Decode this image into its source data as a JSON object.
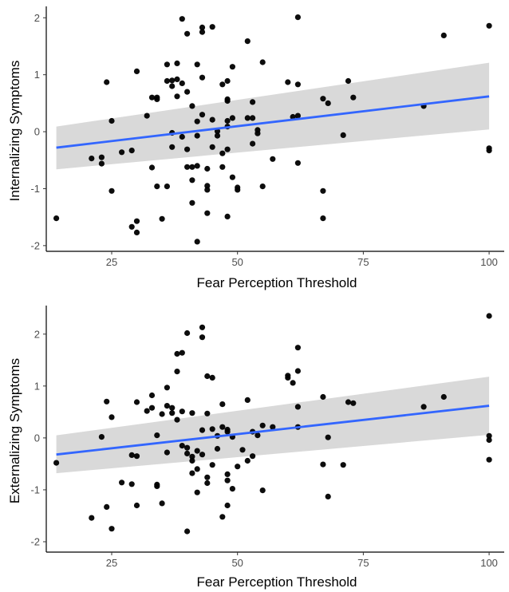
{
  "colors": {
    "points": "#000000",
    "fit_line": "#3366ff",
    "confidence_band": "#d9d9d9",
    "axis": "#000000"
  },
  "chart_data": [
    {
      "type": "scatter",
      "title": "",
      "xlabel": "Fear Perception Threshold",
      "ylabel": "Internalizing Symptoms",
      "xlim": [
        12,
        103
      ],
      "ylim": [
        -2.1,
        2.2
      ],
      "x_ticks": [
        25,
        50,
        75,
        100
      ],
      "y_ticks": [
        -2,
        -1,
        0,
        1,
        2
      ],
      "grid": false,
      "fit": {
        "method": "linear",
        "x": [
          14,
          100
        ],
        "y": [
          -0.28,
          0.62
        ],
        "ci_lower": [
          -0.66,
          0.04
        ],
        "ci_upper": [
          0.09,
          1.21
        ]
      },
      "points": [
        [
          14,
          -1.52
        ],
        [
          21,
          -0.47
        ],
        [
          23,
          -0.45
        ],
        [
          23,
          -0.56
        ],
        [
          24,
          0.87
        ],
        [
          25,
          0.19
        ],
        [
          25,
          -1.04
        ],
        [
          27,
          -0.36
        ],
        [
          29,
          -0.33
        ],
        [
          29,
          -1.67
        ],
        [
          30,
          -1.57
        ],
        [
          30,
          -1.77
        ],
        [
          30,
          1.06
        ],
        [
          32,
          0.28
        ],
        [
          33,
          -0.63
        ],
        [
          33,
          0.6
        ],
        [
          34,
          0.57
        ],
        [
          34,
          0.6
        ],
        [
          34,
          -0.96
        ],
        [
          35,
          -1.53
        ],
        [
          36,
          0.89
        ],
        [
          36,
          1.18
        ],
        [
          36,
          -0.96
        ],
        [
          37,
          0.8
        ],
        [
          37,
          -0.02
        ],
        [
          37,
          -0.27
        ],
        [
          37,
          0.9
        ],
        [
          38,
          1.2
        ],
        [
          38,
          0.62
        ],
        [
          38,
          0.92
        ],
        [
          39,
          0.85
        ],
        [
          39,
          -0.09
        ],
        [
          39,
          1.98
        ],
        [
          40,
          0.7
        ],
        [
          40,
          -0.31
        ],
        [
          40,
          -0.62
        ],
        [
          40,
          1.72
        ],
        [
          41,
          0.45
        ],
        [
          41,
          -0.62
        ],
        [
          41,
          -0.85
        ],
        [
          41,
          -1.25
        ],
        [
          42,
          1.18
        ],
        [
          42,
          0.18
        ],
        [
          42,
          -0.07
        ],
        [
          42,
          -0.6
        ],
        [
          42,
          -1.93
        ],
        [
          43,
          1.75
        ],
        [
          43,
          1.83
        ],
        [
          43,
          0.95
        ],
        [
          43,
          0.3
        ],
        [
          44,
          -0.65
        ],
        [
          44,
          -0.95
        ],
        [
          44,
          -1.02
        ],
        [
          44,
          -1.43
        ],
        [
          45,
          1.84
        ],
        [
          45,
          0.21
        ],
        [
          45,
          -0.27
        ],
        [
          46,
          0.01
        ],
        [
          46,
          -0.07
        ],
        [
          47,
          -0.38
        ],
        [
          47,
          -0.62
        ],
        [
          47,
          0.83
        ],
        [
          48,
          0.89
        ],
        [
          48,
          0.54
        ],
        [
          48,
          0.57
        ],
        [
          48,
          0.19
        ],
        [
          48,
          0.09
        ],
        [
          48,
          -0.31
        ],
        [
          48,
          -1.49
        ],
        [
          49,
          1.14
        ],
        [
          49,
          -0.8
        ],
        [
          49,
          0.24
        ],
        [
          50,
          -0.98
        ],
        [
          50,
          -1.02
        ],
        [
          52,
          1.59
        ],
        [
          52,
          0.24
        ],
        [
          53,
          0.52
        ],
        [
          53,
          0.24
        ],
        [
          53,
          -0.21
        ],
        [
          54,
          0.03
        ],
        [
          54,
          -0.03
        ],
        [
          55,
          1.22
        ],
        [
          55,
          -0.96
        ],
        [
          57,
          -0.48
        ],
        [
          60,
          0.87
        ],
        [
          61,
          0.26
        ],
        [
          62,
          0.28
        ],
        [
          62,
          0.83
        ],
        [
          62,
          -0.55
        ],
        [
          62,
          2.01
        ],
        [
          67,
          0.58
        ],
        [
          67,
          -1.04
        ],
        [
          67,
          -1.52
        ],
        [
          68,
          0.5
        ],
        [
          71,
          -0.06
        ],
        [
          72,
          0.89
        ],
        [
          73,
          0.6
        ],
        [
          87,
          0.45
        ],
        [
          91,
          1.69
        ],
        [
          100,
          1.86
        ],
        [
          100,
          -0.29
        ],
        [
          100,
          -0.33
        ]
      ]
    },
    {
      "type": "scatter",
      "title": "",
      "xlabel": "Fear Perception Threshold",
      "ylabel": "Externalizing Symptoms",
      "xlim": [
        12,
        103
      ],
      "ylim": [
        -2.2,
        2.55
      ],
      "x_ticks": [
        25,
        50,
        75,
        100
      ],
      "y_ticks": [
        -2,
        -1,
        0,
        1,
        2
      ],
      "grid": false,
      "fit": {
        "method": "linear",
        "x": [
          14,
          100
        ],
        "y": [
          -0.32,
          0.62
        ],
        "ci_lower": [
          -0.68,
          0.06
        ],
        "ci_upper": [
          0.05,
          1.18
        ]
      },
      "points": [
        [
          14,
          -0.48
        ],
        [
          21,
          -1.54
        ],
        [
          23,
          0.02
        ],
        [
          24,
          0.7
        ],
        [
          24,
          -1.33
        ],
        [
          25,
          0.4
        ],
        [
          25,
          -1.75
        ],
        [
          27,
          -0.86
        ],
        [
          29,
          -0.33
        ],
        [
          29,
          -0.89
        ],
        [
          30,
          -0.35
        ],
        [
          30,
          0.69
        ],
        [
          30,
          -1.3
        ],
        [
          32,
          0.52
        ],
        [
          33,
          0.82
        ],
        [
          33,
          0.58
        ],
        [
          34,
          0.05
        ],
        [
          34,
          -0.9
        ],
        [
          34,
          -0.93
        ],
        [
          35,
          0.46
        ],
        [
          35,
          -1.26
        ],
        [
          36,
          0.97
        ],
        [
          36,
          0.62
        ],
        [
          36,
          -0.28
        ],
        [
          37,
          0.58
        ],
        [
          37,
          0.48
        ],
        [
          38,
          1.28
        ],
        [
          38,
          1.62
        ],
        [
          38,
          0.35
        ],
        [
          39,
          1.64
        ],
        [
          39,
          0.51
        ],
        [
          39,
          -0.15
        ],
        [
          40,
          2.02
        ],
        [
          40,
          -0.19
        ],
        [
          40,
          -0.3
        ],
        [
          40,
          -1.8
        ],
        [
          41,
          0.48
        ],
        [
          41,
          -0.36
        ],
        [
          41,
          -0.44
        ],
        [
          41,
          -0.68
        ],
        [
          42,
          -0.25
        ],
        [
          42,
          -0.6
        ],
        [
          42,
          -1.05
        ],
        [
          43,
          2.13
        ],
        [
          43,
          1.94
        ],
        [
          43,
          0.15
        ],
        [
          43,
          -0.32
        ],
        [
          44,
          1.19
        ],
        [
          44,
          0.47
        ],
        [
          44,
          -0.76
        ],
        [
          44,
          -0.87
        ],
        [
          45,
          1.16
        ],
        [
          45,
          0.17
        ],
        [
          45,
          -0.52
        ],
        [
          46,
          0.04
        ],
        [
          46,
          -0.21
        ],
        [
          47,
          0.65
        ],
        [
          47,
          0.21
        ],
        [
          47,
          -1.52
        ],
        [
          48,
          0.16
        ],
        [
          48,
          0.12
        ],
        [
          48,
          -0.7
        ],
        [
          48,
          -0.82
        ],
        [
          48,
          -1.3
        ],
        [
          49,
          0.02
        ],
        [
          49,
          -0.98
        ],
        [
          50,
          -0.55
        ],
        [
          51,
          -0.23
        ],
        [
          52,
          0.73
        ],
        [
          52,
          -0.44
        ],
        [
          53,
          0.12
        ],
        [
          53,
          -0.35
        ],
        [
          54,
          0.05
        ],
        [
          55,
          0.24
        ],
        [
          55,
          -1.01
        ],
        [
          57,
          0.21
        ],
        [
          60,
          1.2
        ],
        [
          60,
          1.16
        ],
        [
          61,
          1.06
        ],
        [
          62,
          1.29
        ],
        [
          62,
          1.74
        ],
        [
          62,
          0.6
        ],
        [
          62,
          0.21
        ],
        [
          67,
          0.79
        ],
        [
          67,
          -0.51
        ],
        [
          68,
          -1.13
        ],
        [
          68,
          0.01
        ],
        [
          71,
          -0.52
        ],
        [
          72,
          0.69
        ],
        [
          73,
          0.67
        ],
        [
          87,
          0.6
        ],
        [
          91,
          0.79
        ],
        [
          100,
          2.35
        ],
        [
          100,
          0.04
        ],
        [
          100,
          -0.04
        ],
        [
          100,
          -0.42
        ]
      ]
    }
  ]
}
